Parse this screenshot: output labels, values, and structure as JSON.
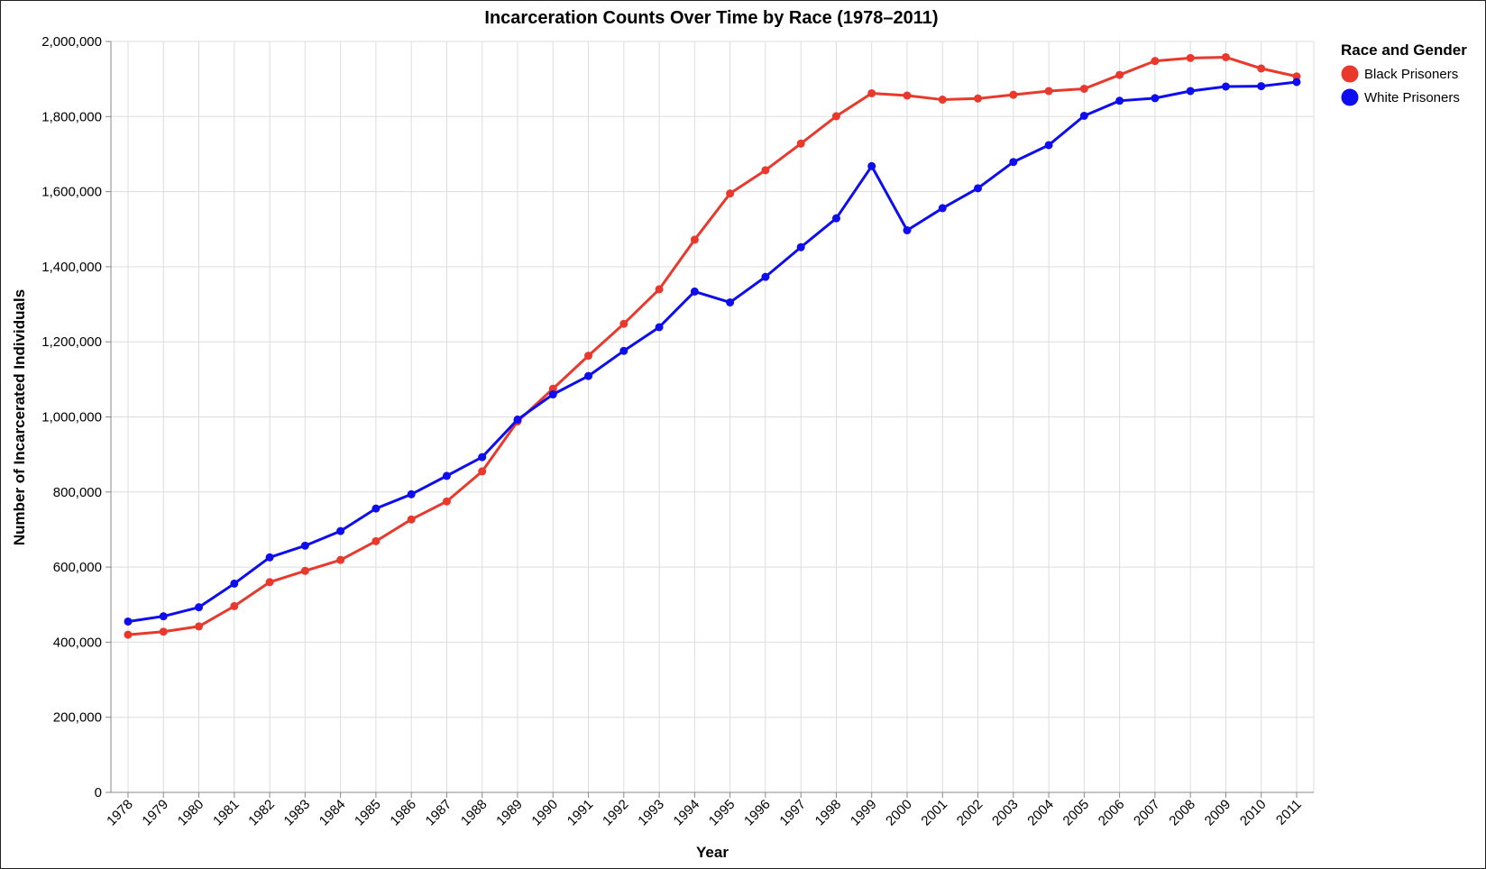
{
  "chart_data": {
    "type": "line",
    "title": "Incarceration Counts Over Time by Race (1978–2011)",
    "xlabel": "Year",
    "ylabel": "Number of Incarcerated Individuals",
    "ylim": [
      0,
      2000000
    ],
    "yticks": [
      0,
      200000,
      400000,
      600000,
      800000,
      1000000,
      1200000,
      1400000,
      1600000,
      1800000,
      2000000
    ],
    "ytick_labels": [
      "0",
      "200,000",
      "400,000",
      "600,000",
      "800,000",
      "1,000,000",
      "1,200,000",
      "1,400,000",
      "1,600,000",
      "1,800,000",
      "2,000,000"
    ],
    "grid": true,
    "legend": {
      "title": "Race and Gender",
      "placement": "top-right"
    },
    "x": [
      "1978",
      "1979",
      "1980",
      "1981",
      "1982",
      "1983",
      "1984",
      "1985",
      "1986",
      "1987",
      "1988",
      "1989",
      "1990",
      "1991",
      "1992",
      "1993",
      "1994",
      "1995",
      "1996",
      "1997",
      "1998",
      "1999",
      "2000",
      "2001",
      "2002",
      "2003",
      "2004",
      "2005",
      "2006",
      "2007",
      "2008",
      "2009",
      "2010",
      "2011"
    ],
    "series": [
      {
        "name": "Black Prisoners",
        "color": "#e8392c",
        "values": [
          420000,
          428000,
          442000,
          496000,
          560000,
          590000,
          619000,
          669000,
          727000,
          775000,
          855000,
          988000,
          1075000,
          1163000,
          1248000,
          1340000,
          1472000,
          1595000,
          1657000,
          1728000,
          1801000,
          1862000,
          1856000,
          1845000,
          1848000,
          1858000,
          1868000,
          1874000,
          1911000,
          1948000,
          1956000,
          1958000,
          1928000,
          1907000
        ]
      },
      {
        "name": "White Prisoners",
        "color": "#0d0df0",
        "values": [
          455000,
          469000,
          493000,
          556000,
          626000,
          657000,
          696000,
          756000,
          794000,
          843000,
          893000,
          993000,
          1060000,
          1109000,
          1176000,
          1239000,
          1334000,
          1305000,
          1373000,
          1452000,
          1529000,
          1668000,
          1497000,
          1556000,
          1609000,
          1679000,
          1724000,
          1802000,
          1842000,
          1849000,
          1868000,
          1880000,
          1881000,
          1892000
        ]
      }
    ]
  }
}
